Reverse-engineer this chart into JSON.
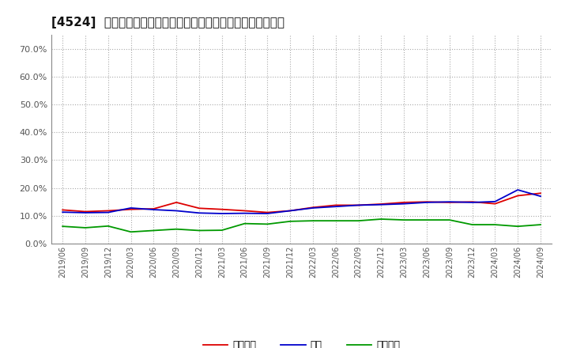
{
  "title": "[4524]  売上債権、在庫、買入債務の総資産に対する比率の推移",
  "legend_labels": [
    "売上債権",
    "在庫",
    "買入債務"
  ],
  "line_colors": [
    "#dd0000",
    "#0000cc",
    "#009900"
  ],
  "ylim": [
    0.0,
    0.75
  ],
  "yticks": [
    0.0,
    0.1,
    0.2,
    0.3,
    0.4,
    0.5,
    0.6,
    0.7
  ],
  "background_color": "#ffffff",
  "plot_bg_color": "#ffffff",
  "x_labels": [
    "2019/06",
    "2019/09",
    "2019/12",
    "2020/03",
    "2020/06",
    "2020/09",
    "2020/12",
    "2021/03",
    "2021/06",
    "2021/09",
    "2021/12",
    "2022/03",
    "2022/06",
    "2022/09",
    "2022/12",
    "2023/03",
    "2023/06",
    "2023/09",
    "2023/12",
    "2024/03",
    "2024/06",
    "2024/09"
  ],
  "receivables": [
    0.121,
    0.115,
    0.118,
    0.123,
    0.125,
    0.148,
    0.127,
    0.123,
    0.118,
    0.112,
    0.118,
    0.13,
    0.138,
    0.138,
    0.142,
    0.148,
    0.15,
    0.148,
    0.15,
    0.143,
    0.172,
    0.181
  ],
  "inventory": [
    0.113,
    0.111,
    0.112,
    0.128,
    0.122,
    0.118,
    0.11,
    0.108,
    0.109,
    0.108,
    0.118,
    0.128,
    0.133,
    0.138,
    0.14,
    0.143,
    0.148,
    0.15,
    0.148,
    0.151,
    0.193,
    0.17
  ],
  "payables": [
    0.062,
    0.057,
    0.063,
    0.042,
    0.047,
    0.052,
    0.047,
    0.048,
    0.072,
    0.07,
    0.08,
    0.082,
    0.082,
    0.082,
    0.088,
    0.085,
    0.085,
    0.085,
    0.068,
    0.068,
    0.062,
    0.068
  ]
}
